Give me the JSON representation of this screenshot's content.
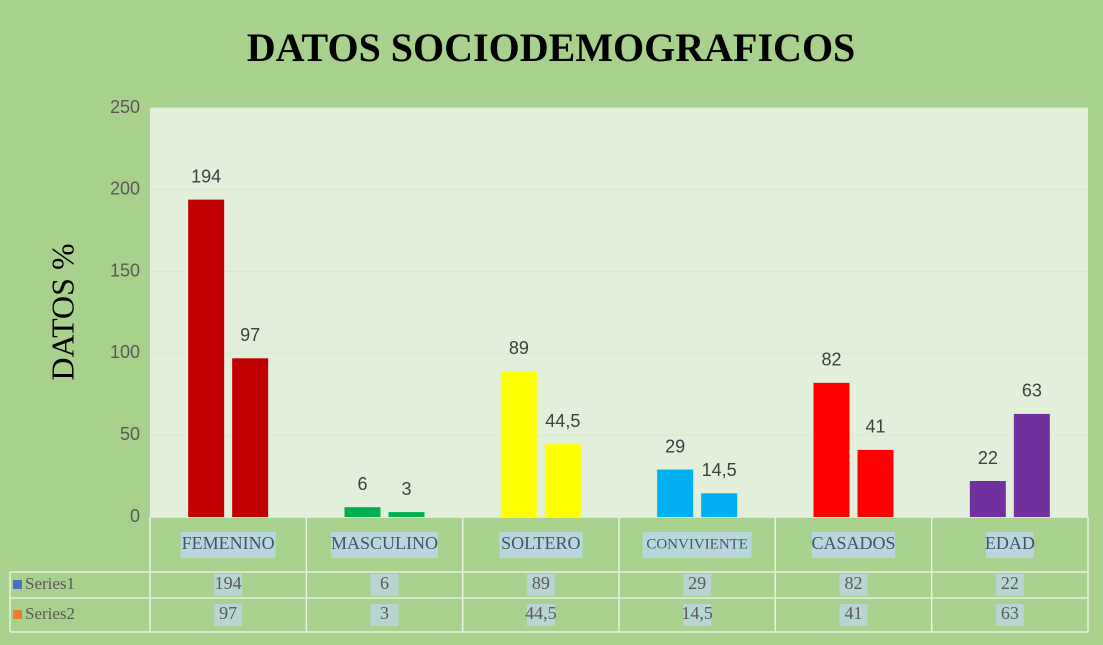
{
  "chart_data": {
    "type": "bar",
    "title": "DATOS SOCIODEMOGRAFICOS",
    "y_label": "DATOS %",
    "categories": [
      "FEMENINO",
      "MASCULINO",
      "SOLTERO",
      "CONVIVIENTE",
      "CASADOS",
      "EDAD"
    ],
    "category_colors": [
      "#c00000",
      "#00b050",
      "#ffff00",
      "#00b0f0",
      "#ff0000",
      "#7030a0"
    ],
    "series": [
      {
        "name": "Series1",
        "color": "#4472c4",
        "values": [
          194,
          6,
          89,
          29,
          82,
          22
        ],
        "value_labels": [
          "194",
          "6",
          "89",
          "29",
          "82",
          "22"
        ]
      },
      {
        "name": "Series2",
        "color": "#ed7d31",
        "values": [
          97,
          3,
          44.5,
          14.5,
          41,
          63
        ],
        "value_labels": [
          "97",
          "3",
          "44,5",
          "14,5",
          "41",
          "63"
        ]
      }
    ],
    "ylim": [
      0,
      250
    ],
    "yticks": [
      0,
      50,
      100,
      150,
      200,
      250
    ],
    "grid": true
  }
}
